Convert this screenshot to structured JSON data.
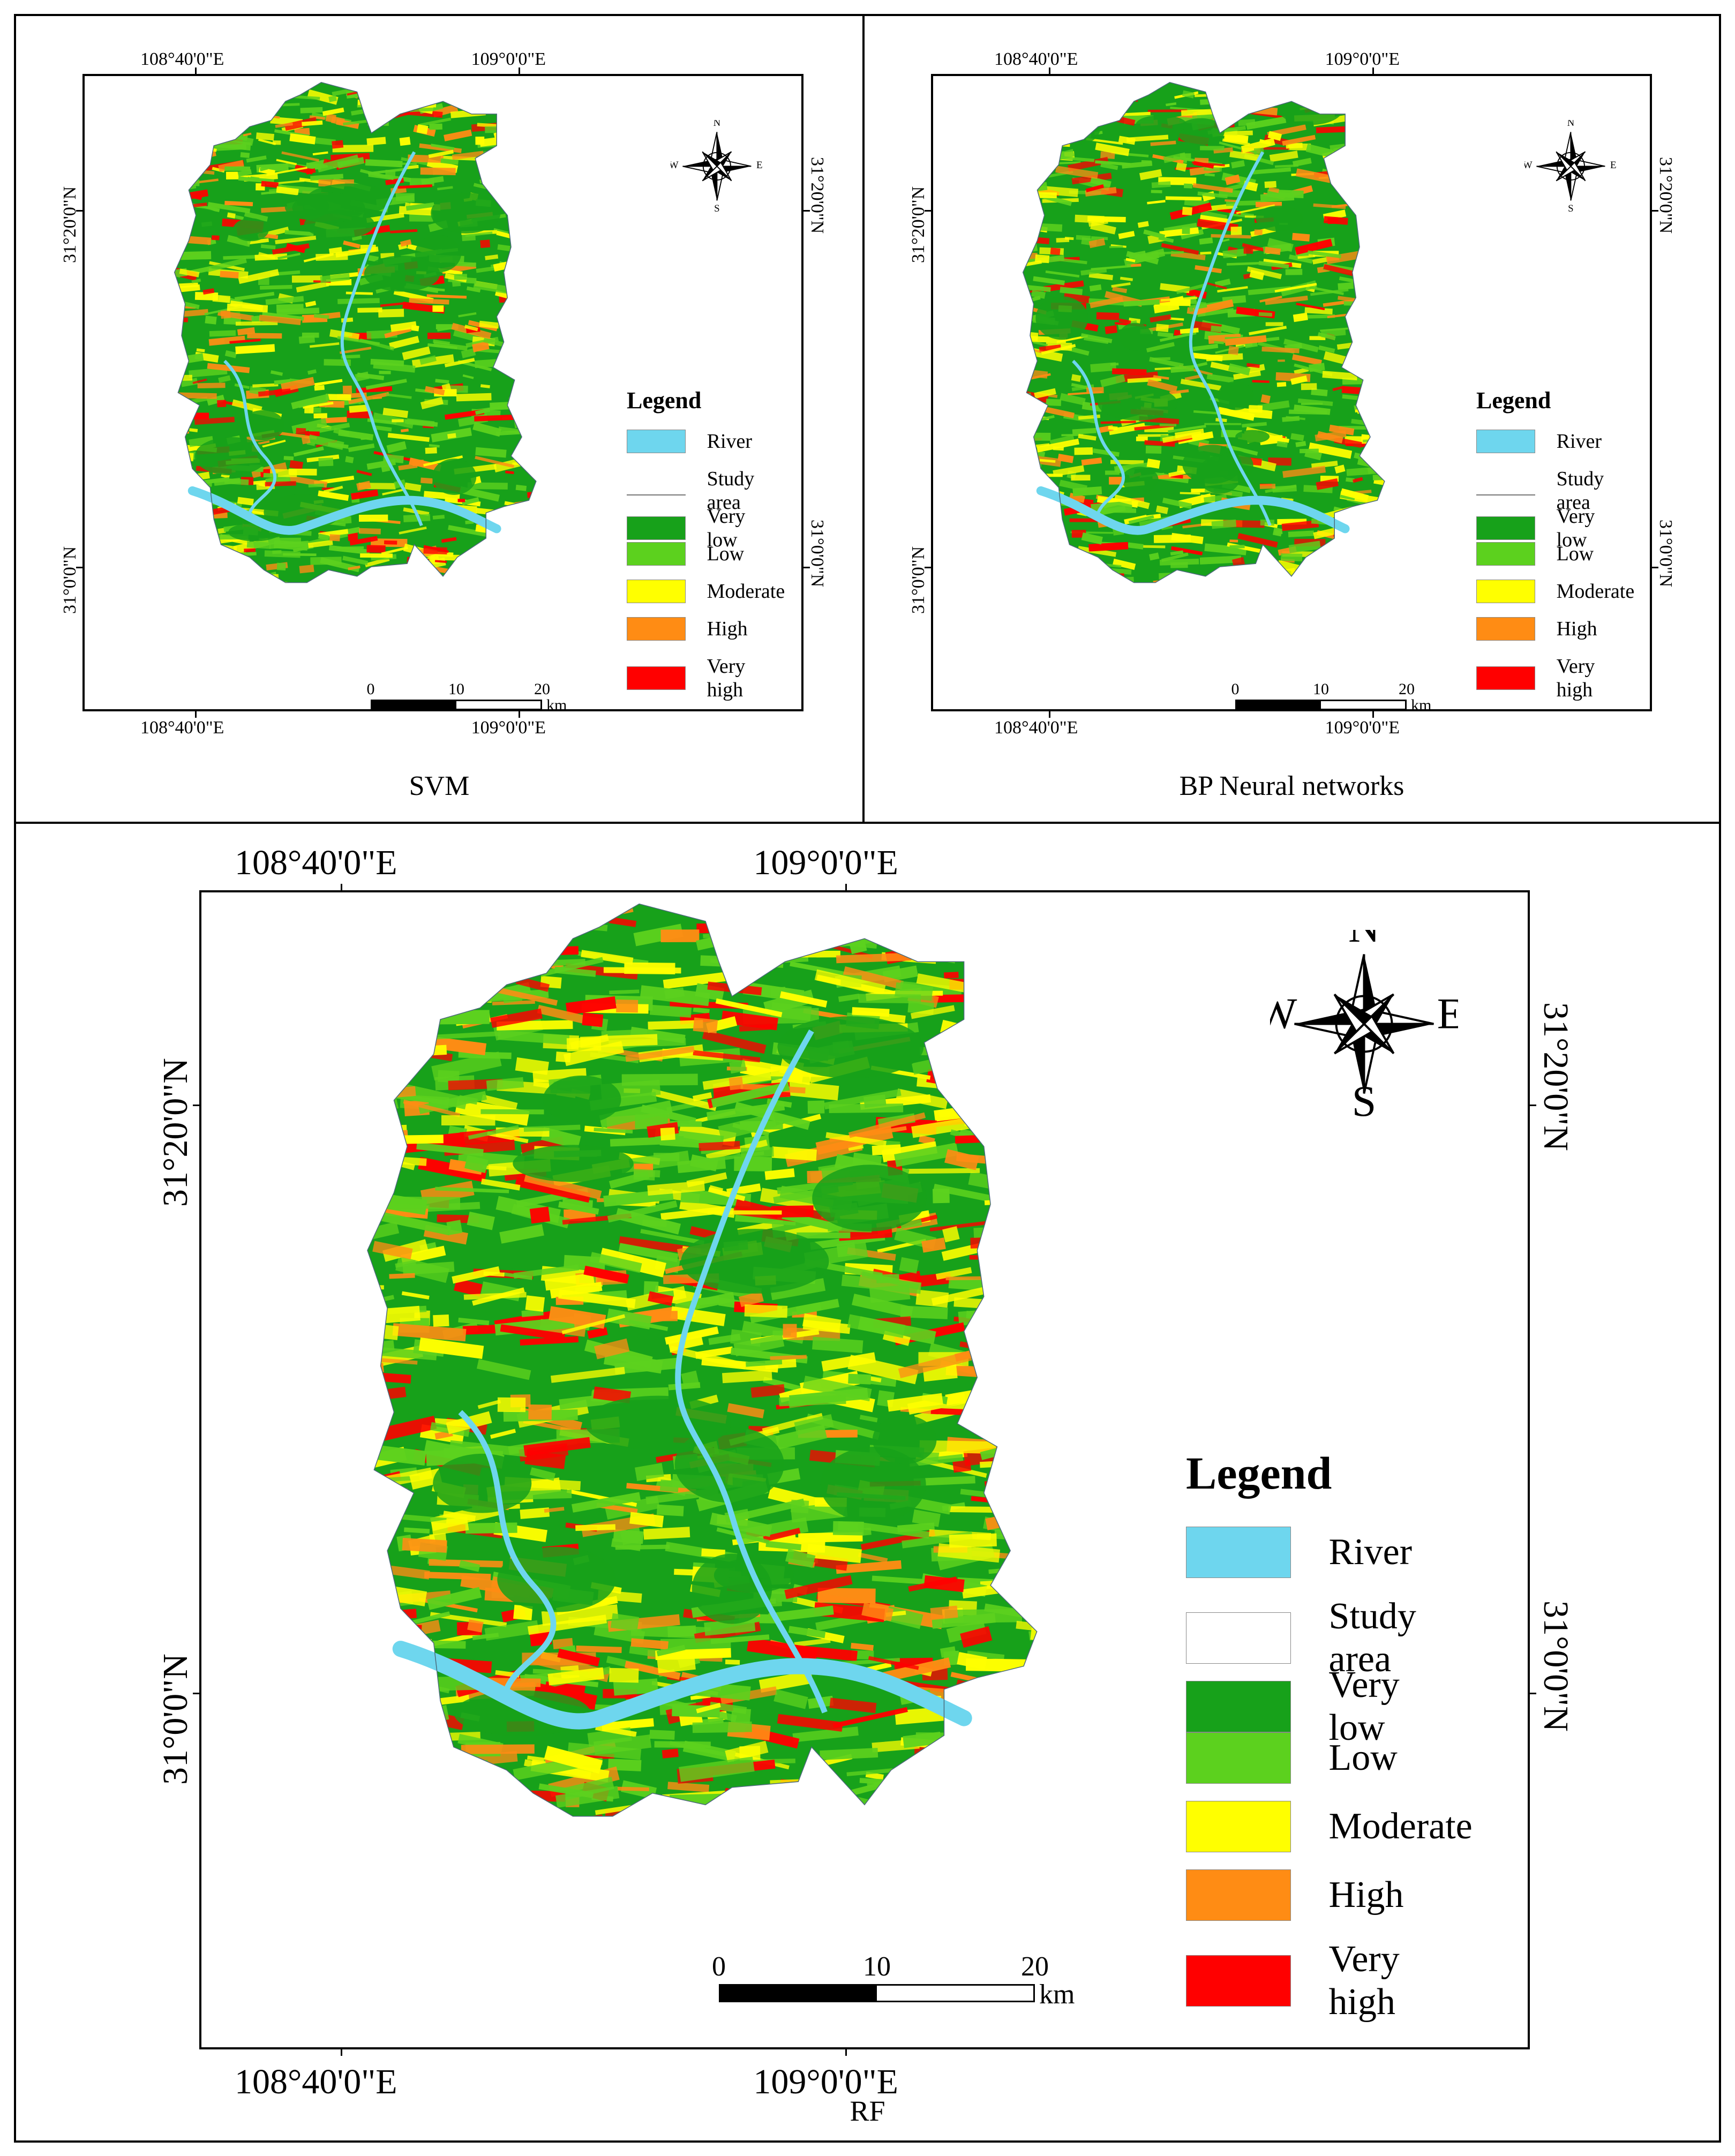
{
  "colors": {
    "river": "#6ed6ee",
    "very_low": "#17a11a",
    "low": "#5cd11e",
    "moderate": "#ffff00",
    "high": "#ff8c14",
    "very_high": "#ff0000",
    "study_area": "#ffffff"
  },
  "coordinates": {
    "lon_left": "108°40'0\"E",
    "lon_right": "109°0'0\"E",
    "lat_top": "31°20'0\"N",
    "lat_bottom": "31°0'0\"N"
  },
  "compass": {
    "n": "N",
    "s": "S",
    "e": "E",
    "w": "W"
  },
  "scale_bar": {
    "ticks": [
      "0",
      "10",
      "20"
    ],
    "unit": "km"
  },
  "legend": {
    "title": "Legend",
    "items": [
      {
        "label": "River",
        "color": "#6ed6ee",
        "kind": "patch"
      },
      {
        "label": "Study area",
        "color": "#ffffff",
        "kind": "line"
      },
      {
        "label": "Very low",
        "color": "#17a11a",
        "kind": "patch"
      },
      {
        "label": "Low",
        "color": "#5cd11e",
        "kind": "patch"
      },
      {
        "label": "Moderate",
        "color": "#ffff00",
        "kind": "patch"
      },
      {
        "label": "High",
        "color": "#ff8c14",
        "kind": "patch"
      },
      {
        "label": "Very high",
        "color": "#ff0000",
        "kind": "patch"
      }
    ]
  },
  "panels": [
    {
      "id": "svm",
      "caption": "SVM"
    },
    {
      "id": "bp",
      "caption": "BP Neural networks"
    },
    {
      "id": "rf",
      "caption": "RF"
    }
  ]
}
